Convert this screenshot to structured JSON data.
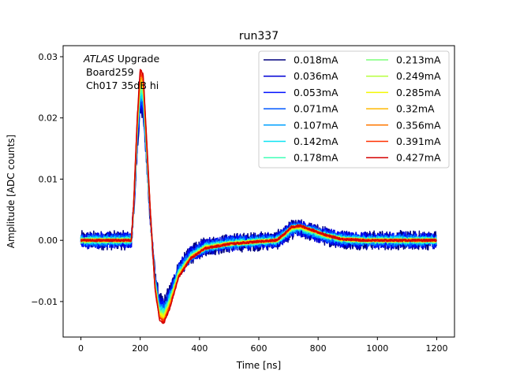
{
  "chart_data": {
    "type": "line",
    "title": "run337",
    "xlabel": "Time [ns]",
    "ylabel": "Amplitude [ADC counts]",
    "xlim": [
      -60,
      1260
    ],
    "ylim": [
      -0.0158,
      0.0318
    ],
    "xticks": [
      0,
      200,
      400,
      600,
      800,
      1000,
      1200
    ],
    "yticks": [
      -0.01,
      0.0,
      0.01,
      0.02,
      0.03
    ],
    "xtick_labels": [
      "0",
      "200",
      "400",
      "600",
      "800",
      "1000",
      "1200"
    ],
    "ytick_labels": [
      "−0.01",
      "0.00",
      "0.01",
      "0.02",
      "0.03"
    ],
    "grid": false,
    "legend_position": "top-right",
    "legend_columns": 2,
    "annotation": {
      "atlas": "ATLAS",
      "upgrade": " Upgrade",
      "board": "Board259",
      "channel": "Ch017 35dB hi"
    },
    "shape_points": [
      [
        0,
        0.0
      ],
      [
        170,
        0.0
      ],
      [
        178,
        0.006
      ],
      [
        190,
        0.02
      ],
      [
        200,
        0.028
      ],
      [
        210,
        0.027
      ],
      [
        220,
        0.018
      ],
      [
        235,
        0.004
      ],
      [
        250,
        -0.008
      ],
      [
        265,
        -0.013
      ],
      [
        280,
        -0.0135
      ],
      [
        300,
        -0.011
      ],
      [
        330,
        -0.006
      ],
      [
        370,
        -0.003
      ],
      [
        420,
        -0.0013
      ],
      [
        500,
        -0.0006
      ],
      [
        600,
        -0.0002
      ],
      [
        660,
        0.0
      ],
      [
        690,
        0.0012
      ],
      [
        710,
        0.0022
      ],
      [
        740,
        0.0024
      ],
      [
        780,
        0.0017
      ],
      [
        830,
        0.0008
      ],
      [
        880,
        0.0002
      ],
      [
        960,
        0.0
      ],
      [
        1200,
        0.0
      ]
    ],
    "series": [
      {
        "name": "0.018mA",
        "color": "#00007f",
        "noise": 0.0016
      },
      {
        "name": "0.036mA",
        "color": "#0000d4",
        "noise": 0.0014
      },
      {
        "name": "0.053mA",
        "color": "#0010ff",
        "noise": 0.0012
      },
      {
        "name": "0.071mA",
        "color": "#0058ff",
        "noise": 0.001
      },
      {
        "name": "0.107mA",
        "color": "#00a0ff",
        "noise": 0.0008
      },
      {
        "name": "0.142mA",
        "color": "#0ce4f3",
        "noise": 0.0006
      },
      {
        "name": "0.178mA",
        "color": "#40ffb7",
        "noise": 0.0005
      },
      {
        "name": "0.213mA",
        "color": "#7dff7a",
        "noise": 0.0004
      },
      {
        "name": "0.249mA",
        "color": "#b7ff40",
        "noise": 0.0003
      },
      {
        "name": "0.285mA",
        "color": "#f4f802",
        "noise": 0.0003
      },
      {
        "name": "0.32mA",
        "color": "#ffb900",
        "noise": 0.0002
      },
      {
        "name": "0.356mA",
        "color": "#ff7700",
        "noise": 0.0002
      },
      {
        "name": "0.391mA",
        "color": "#ff3000",
        "noise": 0.0002
      },
      {
        "name": "0.427mA",
        "color": "#d40000",
        "noise": 0.0002
      }
    ]
  }
}
